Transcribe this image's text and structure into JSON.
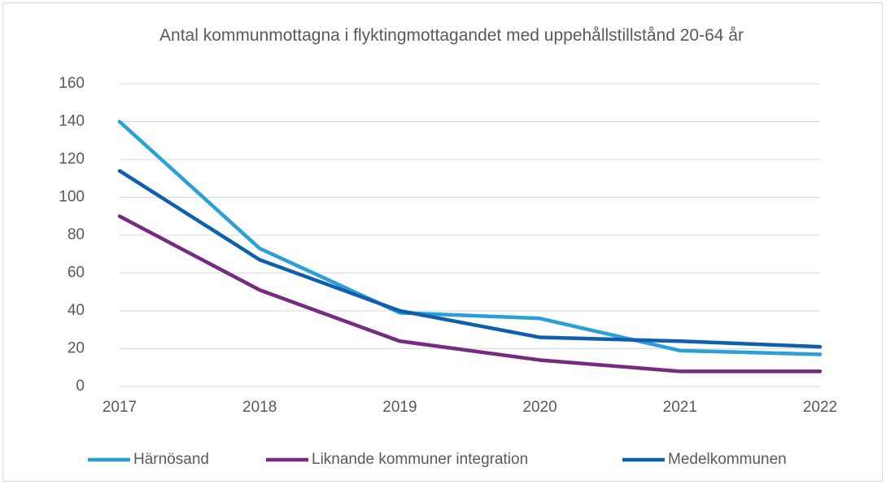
{
  "chart_data": {
    "type": "line",
    "title": "Antal kommunmottagna i flyktingmottagandet med uppehållstillstånd 20-64 år",
    "x": [
      2017,
      2018,
      2019,
      2020,
      2021,
      2022
    ],
    "xlim": [
      2017,
      2022
    ],
    "xticks": [
      2017,
      2018,
      2019,
      2020,
      2021,
      2022
    ],
    "ylim": [
      0,
      160
    ],
    "yticks": [
      0,
      20,
      40,
      60,
      80,
      100,
      120,
      140,
      160
    ],
    "grid": true,
    "legend": "bottom",
    "series": [
      {
        "name": "Härnösand",
        "color": "#2a9fd8",
        "values": [
          140,
          73,
          39,
          36,
          19,
          17
        ]
      },
      {
        "name": "Liknande kommuner integration",
        "color": "#772b80",
        "values": [
          90,
          51,
          24,
          14,
          8,
          8
        ]
      },
      {
        "name": "Medelkommunen",
        "color": "#105fae",
        "values": [
          114,
          67,
          40,
          26,
          24,
          21
        ]
      }
    ]
  }
}
